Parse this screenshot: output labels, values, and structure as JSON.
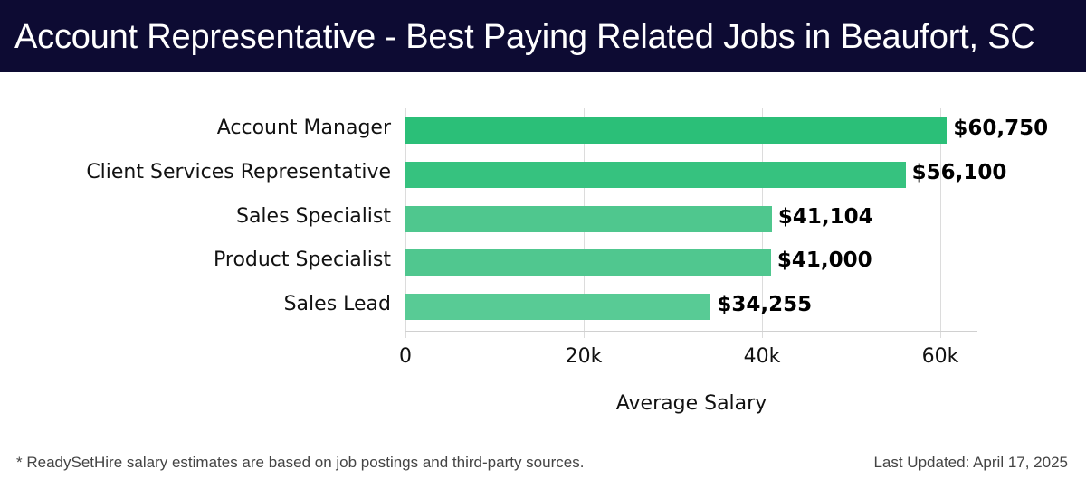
{
  "header": {
    "title": "Account Representative - Best Paying Related Jobs in Beaufort, SC"
  },
  "chart_data": {
    "type": "bar",
    "orientation": "horizontal",
    "title": "Account Representative - Best Paying Related Jobs in Beaufort, SC",
    "categories": [
      "Account Manager",
      "Client Services Representative",
      "Sales Specialist",
      "Product Specialist",
      "Sales Lead"
    ],
    "values": [
      60750,
      56100,
      41104,
      41000,
      34255
    ],
    "value_labels": [
      "$60,750",
      "$56,100",
      "$41,104",
      "$41,000",
      "$34,255"
    ],
    "bar_colors": [
      "#2bbf78",
      "#36c27f",
      "#4fc78e",
      "#50c78f",
      "#58cb95"
    ],
    "xlabel": "Average Salary",
    "ylabel": "",
    "xlim": [
      0,
      64000
    ],
    "x_ticks": [
      0,
      20000,
      40000,
      60000
    ],
    "x_tick_labels": [
      "0",
      "20k",
      "40k",
      "60k"
    ],
    "grid": true,
    "legend": null
  },
  "footer": {
    "note": "* ReadySetHire salary estimates are based on job postings and third-party sources.",
    "updated": "Last Updated: April 17, 2025"
  }
}
